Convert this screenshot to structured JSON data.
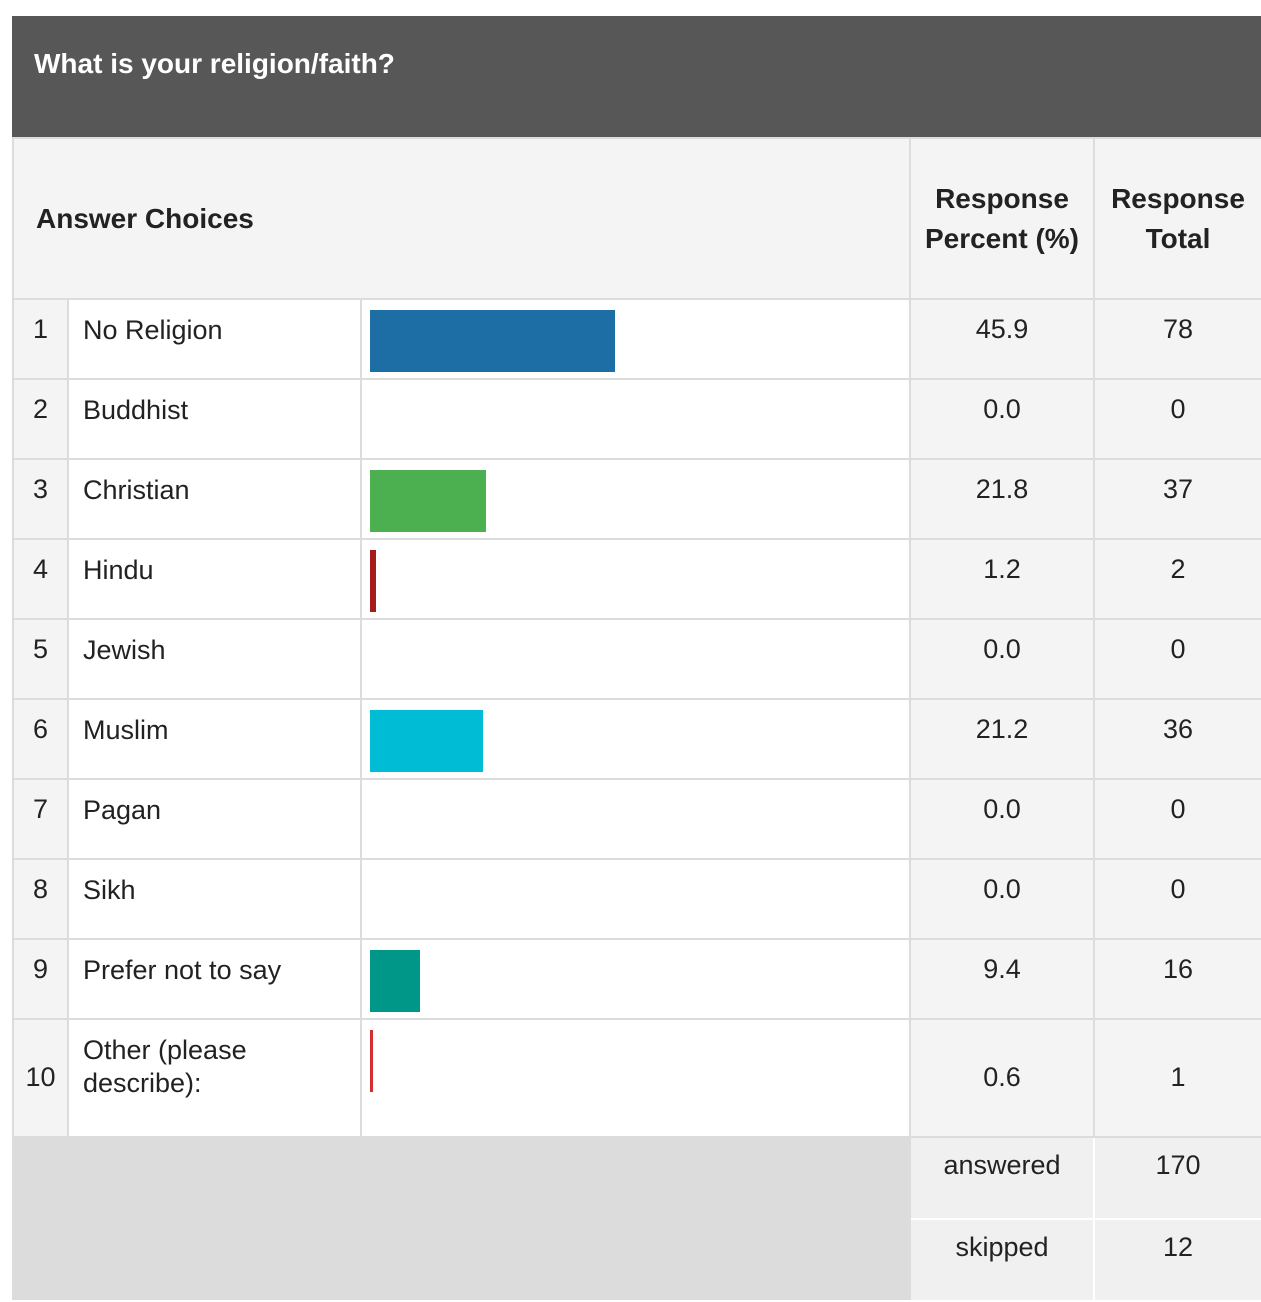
{
  "header": {
    "title": "What is your religion/faith?"
  },
  "table": {
    "columns": [
      "Answer Choices",
      "Response Percent (%)",
      "Response Total"
    ],
    "rows": [
      {
        "number": "1",
        "label": "No Religion",
        "percent": "45.9",
        "total": "78",
        "color": "#1c6ea4"
      },
      {
        "number": "2",
        "label": "Buddhist",
        "percent": "0.0",
        "total": "0",
        "color": "#1c6ea4"
      },
      {
        "number": "3",
        "label": "Christian",
        "percent": "21.8",
        "total": "37",
        "color": "#4caf50"
      },
      {
        "number": "4",
        "label": "Hindu",
        "percent": "1.2",
        "total": "2",
        "color": "#a61c1c"
      },
      {
        "number": "5",
        "label": "Jewish",
        "percent": "0.0",
        "total": "0",
        "color": "#1c6ea4"
      },
      {
        "number": "6",
        "label": "Muslim",
        "percent": "21.2",
        "total": "36",
        "color": "#00bcd4"
      },
      {
        "number": "7",
        "label": "Pagan",
        "percent": "0.0",
        "total": "0",
        "color": "#1c6ea4"
      },
      {
        "number": "8",
        "label": "Sikh",
        "percent": "0.0",
        "total": "0",
        "color": "#1c6ea4"
      },
      {
        "number": "9",
        "label": "Prefer not to say",
        "percent": "9.4",
        "total": "16",
        "color": "#009688"
      },
      {
        "number": "10",
        "label": "Other (please describe):",
        "percent": "0.6",
        "total": "1",
        "color": "#d32f2f"
      }
    ],
    "footer": [
      {
        "label": "answered",
        "value": "170"
      },
      {
        "label": "skipped",
        "value": "12"
      }
    ]
  }
}
